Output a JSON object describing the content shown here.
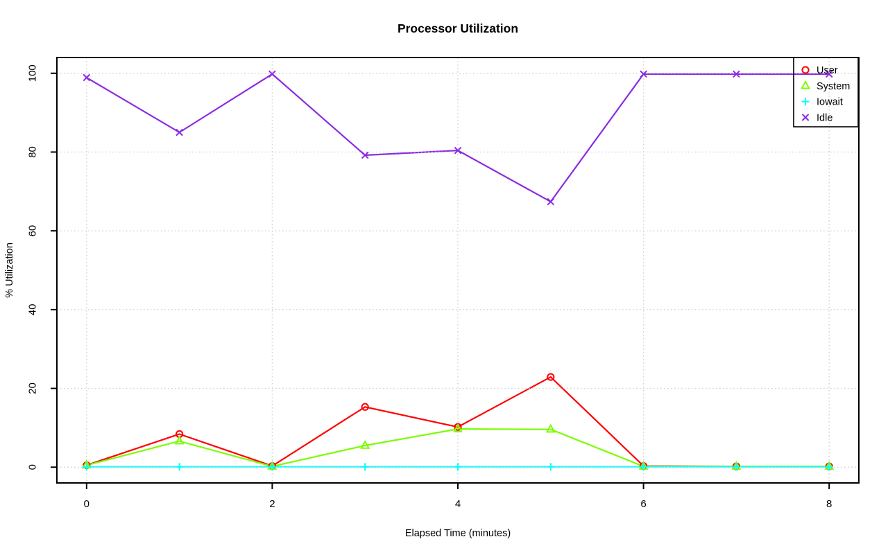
{
  "chart_data": {
    "type": "line",
    "title": "Processor Utilization",
    "xlabel": "Elapsed Time (minutes)",
    "ylabel": "% Utilization",
    "x": [
      0,
      1,
      2,
      3,
      4,
      5,
      6,
      7,
      8
    ],
    "x_ticks": [
      0,
      2,
      4,
      6,
      8
    ],
    "y_ticks": [
      0,
      20,
      40,
      60,
      80,
      100
    ],
    "xlim": [
      -0.32,
      8.32
    ],
    "ylim": [
      -4,
      104
    ],
    "grid": true,
    "grid_style": "dotted-lightgray",
    "legend_position": "top-right-inside",
    "series": [
      {
        "name": "User",
        "color": "#ff0000",
        "marker": "open-circle",
        "values": [
          0.5,
          8.4,
          0.3,
          15.3,
          10.2,
          22.9,
          0.3,
          0.2,
          0.2
        ]
      },
      {
        "name": "System",
        "color": "#7cfc00",
        "marker": "open-triangle",
        "values": [
          0.5,
          6.6,
          0.2,
          5.5,
          9.7,
          9.6,
          0.2,
          0.2,
          0.2
        ]
      },
      {
        "name": "Iowait",
        "color": "#00ffff",
        "marker": "plus",
        "values": [
          0.1,
          0.1,
          0.1,
          0.1,
          0.1,
          0.1,
          0.1,
          0.1,
          0.1
        ]
      },
      {
        "name": "Idle",
        "color": "#8a2be2",
        "marker": "x-cross",
        "values": [
          98.9,
          85.0,
          99.8,
          79.2,
          80.4,
          67.4,
          99.8,
          99.8,
          99.8
        ]
      }
    ],
    "colors": {
      "axis": "#000000",
      "gridline": "#d3d3d3",
      "text": "#000000"
    }
  }
}
